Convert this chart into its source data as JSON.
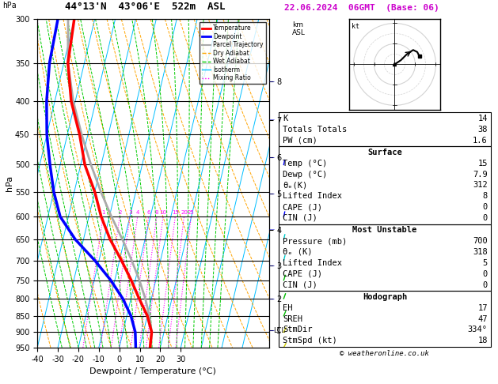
{
  "title": "44°13'N  43°06'E  522m  ASL",
  "date_str": "22.06.2024  06GMT  (Base: 06)",
  "xlabel": "Dewpoint / Temperature (°C)",
  "ylabel_left": "hPa",
  "pressure_levels": [
    300,
    350,
    400,
    450,
    500,
    550,
    600,
    650,
    700,
    750,
    800,
    850,
    900,
    950
  ],
  "pres_min": 300,
  "pres_max": 950,
  "temp_min": -40,
  "temp_max": 35,
  "skew_T": 38.0,
  "isotherm_color": "#00bfff",
  "dry_adiabat_color": "#ffa500",
  "wet_adiabat_color": "#00cc00",
  "mixing_ratio_color": "#ff00ff",
  "temp_profile_T": [
    15,
    14,
    10,
    4,
    -2,
    -9,
    -17,
    -24,
    -30,
    -38,
    -44,
    -52,
    -58,
    -60
  ],
  "temp_profile_Td": [
    8,
    6,
    2,
    -4,
    -12,
    -22,
    -34,
    -44,
    -50,
    -55,
    -60,
    -64,
    -67,
    -68
  ],
  "temp_profile_P": [
    950,
    900,
    850,
    800,
    750,
    700,
    650,
    600,
    550,
    500,
    450,
    400,
    350,
    300
  ],
  "parcel_T": [
    15,
    14,
    11,
    7,
    2,
    -4,
    -11,
    -19,
    -27,
    -35,
    -43,
    -51,
    -58,
    -63
  ],
  "parcel_P": [
    950,
    900,
    850,
    800,
    750,
    700,
    650,
    600,
    550,
    500,
    450,
    400,
    350,
    300
  ],
  "temp_color": "#ff0000",
  "dewpoint_color": "#0000ff",
  "parcel_color": "#aaaaaa",
  "temp_linewidth": 2.5,
  "dewpoint_linewidth": 2.5,
  "parcel_linewidth": 2.0,
  "mixing_ratio_values": [
    1,
    2,
    3,
    4,
    6,
    8,
    10,
    15,
    20,
    25
  ],
  "km_ticks": [
    1,
    2,
    3,
    4,
    5,
    6,
    7,
    8
  ],
  "km_pressures": [
    895,
    800,
    712,
    628,
    554,
    487,
    427,
    373
  ],
  "lcl_pressure": 895,
  "lcl_label": "LCL",
  "legend_entries": [
    {
      "label": "Temperature",
      "color": "#ff0000",
      "lw": 2,
      "ls": "-"
    },
    {
      "label": "Dewpoint",
      "color": "#0000ff",
      "lw": 2,
      "ls": "-"
    },
    {
      "label": "Parcel Trajectory",
      "color": "#aaaaaa",
      "lw": 1.5,
      "ls": "-"
    },
    {
      "label": "Dry Adiabat",
      "color": "#ffa500",
      "lw": 1,
      "ls": "--"
    },
    {
      "label": "Wet Adiabat",
      "color": "#00cc00",
      "lw": 1,
      "ls": "--"
    },
    {
      "label": "Isotherm",
      "color": "#00bfff",
      "lw": 1,
      "ls": "-"
    },
    {
      "label": "Mixing Ratio",
      "color": "#ff00ff",
      "lw": 1,
      "ls": ":"
    }
  ],
  "info_K": 14,
  "info_TT": 38,
  "info_PW": 1.6,
  "sfc_temp": 15,
  "sfc_dewp": 7.9,
  "sfc_theta": 312,
  "sfc_li": 8,
  "sfc_cape": 0,
  "sfc_cin": 0,
  "mu_pres": 700,
  "mu_theta": 318,
  "mu_li": 5,
  "mu_cape": 0,
  "mu_cin": 0,
  "hodo_EH": 17,
  "hodo_SREH": 47,
  "hodo_StmDir": "334°",
  "hodo_StmSpd": 18,
  "bg_color": "#ffffff",
  "wind_barb_pressures": [
    950,
    900,
    850,
    800,
    750,
    700,
    650,
    600,
    500
  ],
  "wind_barb_u": [
    2,
    3,
    3,
    2,
    1,
    -1,
    -2,
    -3,
    -5
  ],
  "wind_barb_v": [
    3,
    5,
    7,
    8,
    8,
    9,
    10,
    12,
    14
  ]
}
